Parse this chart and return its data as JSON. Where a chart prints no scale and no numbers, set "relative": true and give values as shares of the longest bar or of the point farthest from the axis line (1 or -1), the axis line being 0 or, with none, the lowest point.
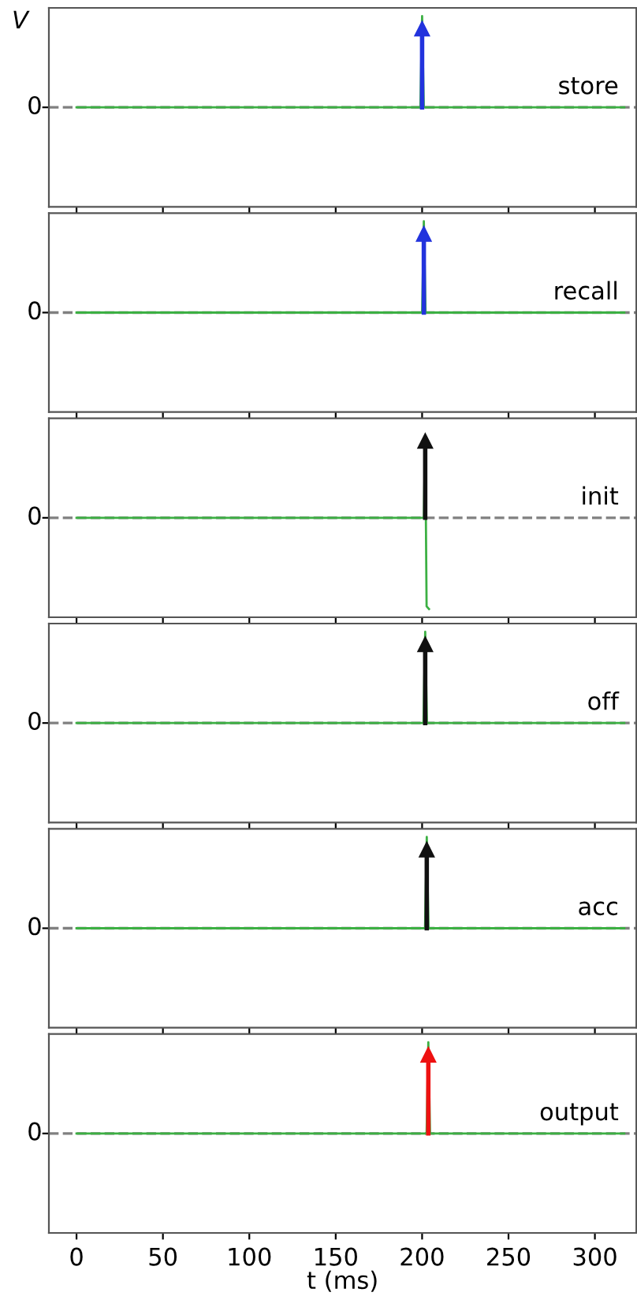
{
  "chart_data": [
    {
      "type": "line",
      "relative": true,
      "ylabel": "V",
      "annotations": [
        "store"
      ],
      "xlim": [
        -16,
        324
      ],
      "xticks": [
        0,
        50,
        100,
        150,
        200,
        250,
        300
      ],
      "tick_labels": false,
      "grid": false,
      "ref_lines": [
        {
          "axis": "y",
          "value": 0,
          "label": "0",
          "color": "#808080",
          "line_style": "dashed"
        }
      ],
      "series": [
        {
          "color": "#3cb043",
          "x": [
            0,
            199,
            200,
            201,
            317
          ],
          "values": [
            0,
            0,
            1,
            0,
            0
          ]
        },
        {
          "type": "lollipop",
          "marker": "triangle",
          "color": "#2233dd",
          "x": [
            200
          ],
          "values": [
            0.86
          ]
        }
      ]
    },
    {
      "type": "line",
      "relative": true,
      "annotations": [
        "recall"
      ],
      "xlim": [
        -16,
        324
      ],
      "xticks": [
        0,
        50,
        100,
        150,
        200,
        250,
        300
      ],
      "tick_labels": false,
      "grid": false,
      "ref_lines": [
        {
          "axis": "y",
          "value": 0,
          "label": "0",
          "color": "#808080",
          "line_style": "dashed"
        }
      ],
      "series": [
        {
          "color": "#3cb043",
          "x": [
            0,
            200,
            201,
            202,
            317
          ],
          "values": [
            0,
            0,
            1,
            0,
            0
          ]
        },
        {
          "type": "lollipop",
          "marker": "triangle",
          "color": "#2233dd",
          "x": [
            201
          ],
          "values": [
            0.86
          ]
        }
      ]
    },
    {
      "type": "line",
      "relative": true,
      "annotations": [
        "init"
      ],
      "xlim": [
        -16,
        324
      ],
      "xticks": [
        0,
        50,
        100,
        150,
        200,
        250,
        300
      ],
      "tick_labels": false,
      "grid": false,
      "ref_lines": [
        {
          "axis": "y",
          "value": 0,
          "label": "0",
          "color": "#808080",
          "line_style": "dashed"
        }
      ],
      "series": [
        {
          "color": "#3cb043",
          "x": [
            0,
            201,
            201.8,
            202.6,
            204
          ],
          "values": [
            0,
            0,
            0.9,
            -0.97,
            -1
          ]
        },
        {
          "type": "lollipop",
          "marker": "triangle",
          "color": "#111111",
          "x": [
            201.8
          ],
          "values": [
            0.84
          ]
        }
      ]
    },
    {
      "type": "line",
      "relative": true,
      "annotations": [
        "off"
      ],
      "xlim": [
        -16,
        324
      ],
      "xticks": [
        0,
        50,
        100,
        150,
        200,
        250,
        300
      ],
      "tick_labels": false,
      "grid": false,
      "ref_lines": [
        {
          "axis": "y",
          "value": 0,
          "label": "0",
          "color": "#808080",
          "line_style": "dashed"
        }
      ],
      "series": [
        {
          "color": "#3cb043",
          "x": [
            0,
            200.8,
            201.8,
            202.8,
            317
          ],
          "values": [
            0,
            0,
            1,
            0,
            0
          ]
        },
        {
          "type": "lollipop",
          "marker": "triangle",
          "color": "#111111",
          "x": [
            201.8
          ],
          "values": [
            0.86
          ]
        }
      ]
    },
    {
      "type": "line",
      "relative": true,
      "annotations": [
        "acc"
      ],
      "xlim": [
        -16,
        324
      ],
      "xticks": [
        0,
        50,
        100,
        150,
        200,
        250,
        300
      ],
      "tick_labels": false,
      "grid": false,
      "ref_lines": [
        {
          "axis": "y",
          "value": 0,
          "label": "0",
          "color": "#808080",
          "line_style": "dashed"
        }
      ],
      "series": [
        {
          "color": "#3cb043",
          "x": [
            0,
            201.7,
            202.7,
            203.7,
            317
          ],
          "values": [
            0,
            0,
            1,
            0,
            0
          ]
        },
        {
          "type": "lollipop",
          "marker": "triangle",
          "color": "#111111",
          "x": [
            202.7
          ],
          "values": [
            0.86
          ]
        }
      ]
    },
    {
      "type": "line",
      "relative": true,
      "xlabel": "t (ms)",
      "annotations": [
        "output"
      ],
      "xlim": [
        -16,
        324
      ],
      "xticks": [
        0,
        50,
        100,
        150,
        200,
        250,
        300
      ],
      "tick_labels": "x",
      "grid": false,
      "ref_lines": [
        {
          "axis": "y",
          "value": 0,
          "label": "0",
          "color": "#808080",
          "line_style": "dashed"
        }
      ],
      "series": [
        {
          "color": "#3cb043",
          "x": [
            0,
            202.6,
            203.6,
            204.6,
            317
          ],
          "values": [
            0,
            0,
            1,
            0,
            0
          ]
        },
        {
          "type": "lollipop",
          "marker": "triangle",
          "color": "#ee1111",
          "x": [
            203.6
          ],
          "values": [
            0.86
          ]
        }
      ]
    }
  ]
}
